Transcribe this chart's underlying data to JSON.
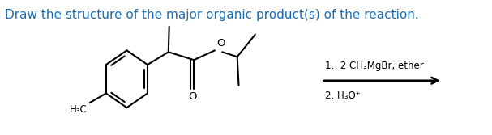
{
  "title": "Draw the structure of the major organic product(s) of the reaction.",
  "title_color": "#1a6eb5",
  "title_fontsize": 11,
  "reagent_line1": "1.  2 CH₃MgBr, ether",
  "reagent_line2": "2. H₃O⁺",
  "background": "#ffffff",
  "line_color": "#000000",
  "line_width": 1.5
}
